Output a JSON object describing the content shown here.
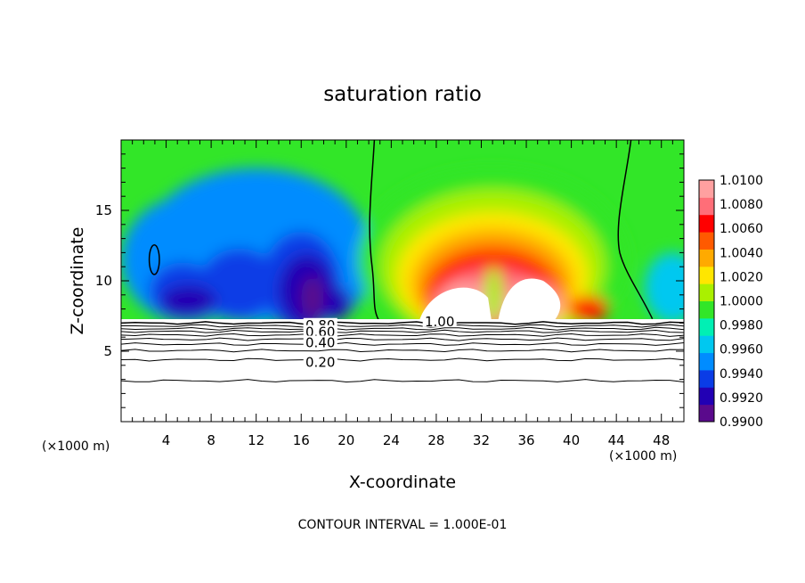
{
  "chart_data": {
    "type": "heatmap",
    "title": "saturation ratio",
    "xlabel": "X-coordinate",
    "ylabel": "Z-coordinate",
    "x_unit_left": "(×1000 m)",
    "x_unit_right": "(×1000 m)",
    "xlim": [
      0,
      50
    ],
    "ylim": [
      0,
      20
    ],
    "x_ticks": [
      4,
      8,
      12,
      16,
      20,
      24,
      28,
      32,
      36,
      40,
      44,
      48
    ],
    "y_ticks": [
      5,
      10,
      15
    ],
    "footer": "CONTOUR INTERVAL = 1.000E-01",
    "colorbar": {
      "levels": [
        "0.9900",
        "0.9920",
        "0.9940",
        "0.9960",
        "0.9980",
        "1.0000",
        "1.0020",
        "1.0040",
        "1.0060",
        "1.0080",
        "1.0100"
      ],
      "colors": [
        "#5a0a8c",
        "#2200b4",
        "#0a3ce6",
        "#008cff",
        "#00c8f0",
        "#00f0b4",
        "#32e628",
        "#aaf000",
        "#ffe600",
        "#ffaa00",
        "#ff5a00",
        "#ff0000",
        "#ff6e78",
        "#ffa0a0"
      ]
    },
    "contour_labels": [
      {
        "text": "1.00",
        "x": 28.3,
        "y": 7.1
      },
      {
        "text": "0.80",
        "x": 17.7,
        "y": 6.85
      },
      {
        "text": "0.60",
        "x": 17.7,
        "y": 6.35
      },
      {
        "text": "0.40",
        "x": 17.7,
        "y": 5.6
      },
      {
        "text": "0.20",
        "x": 17.7,
        "y": 4.2
      }
    ],
    "line_contours_y": [
      7.0,
      6.8,
      6.6,
      6.4,
      6.15,
      5.85,
      5.5,
      5.05,
      4.4,
      2.9
    ],
    "blobs": [
      {
        "cx": 3,
        "cy": 11.5,
        "rx": 3.0,
        "ry": 2.3,
        "level": 4
      },
      {
        "cx": 6,
        "cy": 11.5,
        "rx": 6,
        "ry": 4.5,
        "level": 3
      },
      {
        "cx": 12,
        "cy": 12.5,
        "rx": 10,
        "ry": 5.5,
        "level": 3
      },
      {
        "cx": 18,
        "cy": 11,
        "rx": 4,
        "ry": 4,
        "level": 3
      },
      {
        "cx": 5.5,
        "cy": 9.3,
        "rx": 3,
        "ry": 2.0,
        "level": 2
      },
      {
        "cx": 10.5,
        "cy": 9.8,
        "rx": 3.5,
        "ry": 2.5,
        "level": 2
      },
      {
        "cx": 16,
        "cy": 10.0,
        "rx": 3.5,
        "ry": 3.5,
        "level": 2
      },
      {
        "cx": 6,
        "cy": 8.5,
        "rx": 2.5,
        "ry": 1.2,
        "level": 1
      },
      {
        "cx": 16.5,
        "cy": 9.3,
        "rx": 2.5,
        "ry": 2.6,
        "level": 1
      },
      {
        "cx": 19,
        "cy": 8.4,
        "rx": 1.5,
        "ry": 1.2,
        "level": 1
      },
      {
        "cx": 17,
        "cy": 8.8,
        "rx": 1.0,
        "ry": 1.5,
        "level": 0
      },
      {
        "cx": 33,
        "cy": 11.5,
        "rx": 12,
        "ry": 6.5,
        "level": 6
      },
      {
        "cx": 33,
        "cy": 11,
        "rx": 10,
        "ry": 5.5,
        "level": 7
      },
      {
        "cx": 33,
        "cy": 10.3,
        "rx": 8.5,
        "ry": 4.6,
        "level": 8
      },
      {
        "cx": 33,
        "cy": 9.8,
        "rx": 7.2,
        "ry": 3.9,
        "level": 9
      },
      {
        "cx": 33,
        "cy": 9.3,
        "rx": 6.2,
        "ry": 3.3,
        "level": 10
      },
      {
        "cx": 33,
        "cy": 9.0,
        "rx": 5.4,
        "ry": 2.8,
        "level": 11
      },
      {
        "cx": 33,
        "cy": 8.6,
        "rx": 4.8,
        "ry": 2.3,
        "level": 12
      },
      {
        "cx": 30.5,
        "cy": 8.2,
        "rx": 2.7,
        "ry": 1.7,
        "level": 13
      },
      {
        "cx": 36.5,
        "cy": 8.2,
        "rx": 2.6,
        "ry": 1.7,
        "level": 13
      },
      {
        "cx": 41.5,
        "cy": 8.0,
        "rx": 1.8,
        "ry": 0.9,
        "level": 11
      },
      {
        "cx": 33.1,
        "cy": 9.0,
        "rx": 0.8,
        "ry": 2.0,
        "level": 7
      },
      {
        "cx": 49,
        "cy": 9.5,
        "rx": 2.5,
        "ry": 2.5,
        "level": 4
      }
    ]
  }
}
